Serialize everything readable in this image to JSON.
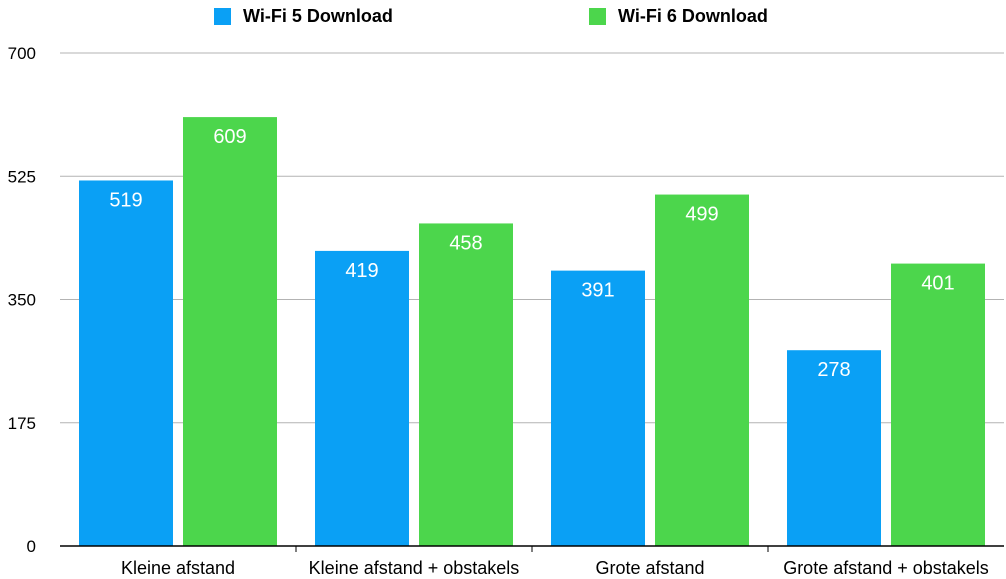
{
  "chart_data": {
    "type": "bar",
    "categories": [
      "Kleine afstand",
      "Kleine afstand + obstakels",
      "Grote afstand",
      "Grote afstand + obstakels"
    ],
    "series": [
      {
        "name": "Wi-Fi 5 Download",
        "values": [
          519,
          419,
          391,
          278
        ],
        "color": "#0aa0f5"
      },
      {
        "name": "Wi-Fi 6 Download",
        "values": [
          609,
          458,
          499,
          401
        ],
        "color": "#4cd64c"
      }
    ],
    "ylim": [
      0,
      700
    ],
    "yticks": [
      "0",
      "175",
      "350",
      "525",
      "700"
    ],
    "grid": true,
    "legend_position": "top",
    "data_labels": true
  }
}
